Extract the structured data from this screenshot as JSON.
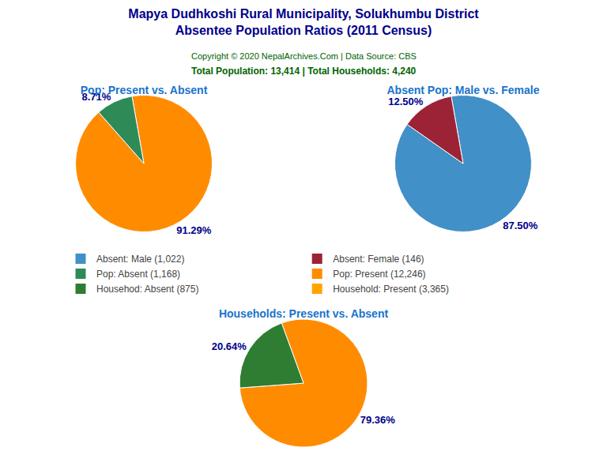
{
  "title": "Mapya Dudhkoshi Rural Municipality, Solukhumbu District",
  "subtitle": "Absentee Population Ratios (2011 Census)",
  "title_color": "#00008B",
  "annotations": [
    {
      "text": "Copyright © 2020 NepalArchives.Com | Data Source: CBS",
      "color": "#006400"
    },
    {
      "text": "Total Population: 13,414 | Total Households: 4,240",
      "color": "#006400"
    }
  ],
  "background_color": "#FFFFFF",
  "label_color": "#00008B",
  "legend_items": [
    {
      "name": "Absent: Male (1,022)",
      "color": "#4190C7"
    },
    {
      "name": "Absent: Female (146)",
      "color": "#9B2335"
    },
    {
      "name": "Pop: Absent (1,168)",
      "color": "#2E8B57"
    },
    {
      "name": "Pop: Present (12,246)",
      "color": "#FF8C00"
    },
    {
      "name": "Househod: Absent (875)",
      "color": "#2E7D32"
    },
    {
      "name": "Household: Present (3,365)",
      "color": "#FFA500"
    }
  ],
  "chart_data": [
    {
      "type": "pie",
      "title": "Pop: Present vs. Absent",
      "title_color": "#1874CD",
      "values": [
        91.29,
        8.71
      ],
      "value_labels": [
        "91.29%",
        "8.71%"
      ],
      "colors": [
        "#FF8C00",
        "#2E8B57"
      ],
      "data_labels": true
    },
    {
      "type": "pie",
      "title": "Absent Pop: Male vs. Female",
      "title_color": "#1874CD",
      "values": [
        87.5,
        12.5
      ],
      "value_labels": [
        "87.50%",
        "12.50%"
      ],
      "colors": [
        "#4190C7",
        "#9B2335"
      ],
      "data_labels": true
    },
    {
      "type": "pie",
      "title": "Households: Present vs. Absent",
      "title_color": "#1874CD",
      "values": [
        79.36,
        20.64
      ],
      "value_labels": [
        "79.36%",
        "20.64%"
      ],
      "colors": [
        "#FF8C00",
        "#2E7D32"
      ],
      "data_labels": true
    }
  ]
}
